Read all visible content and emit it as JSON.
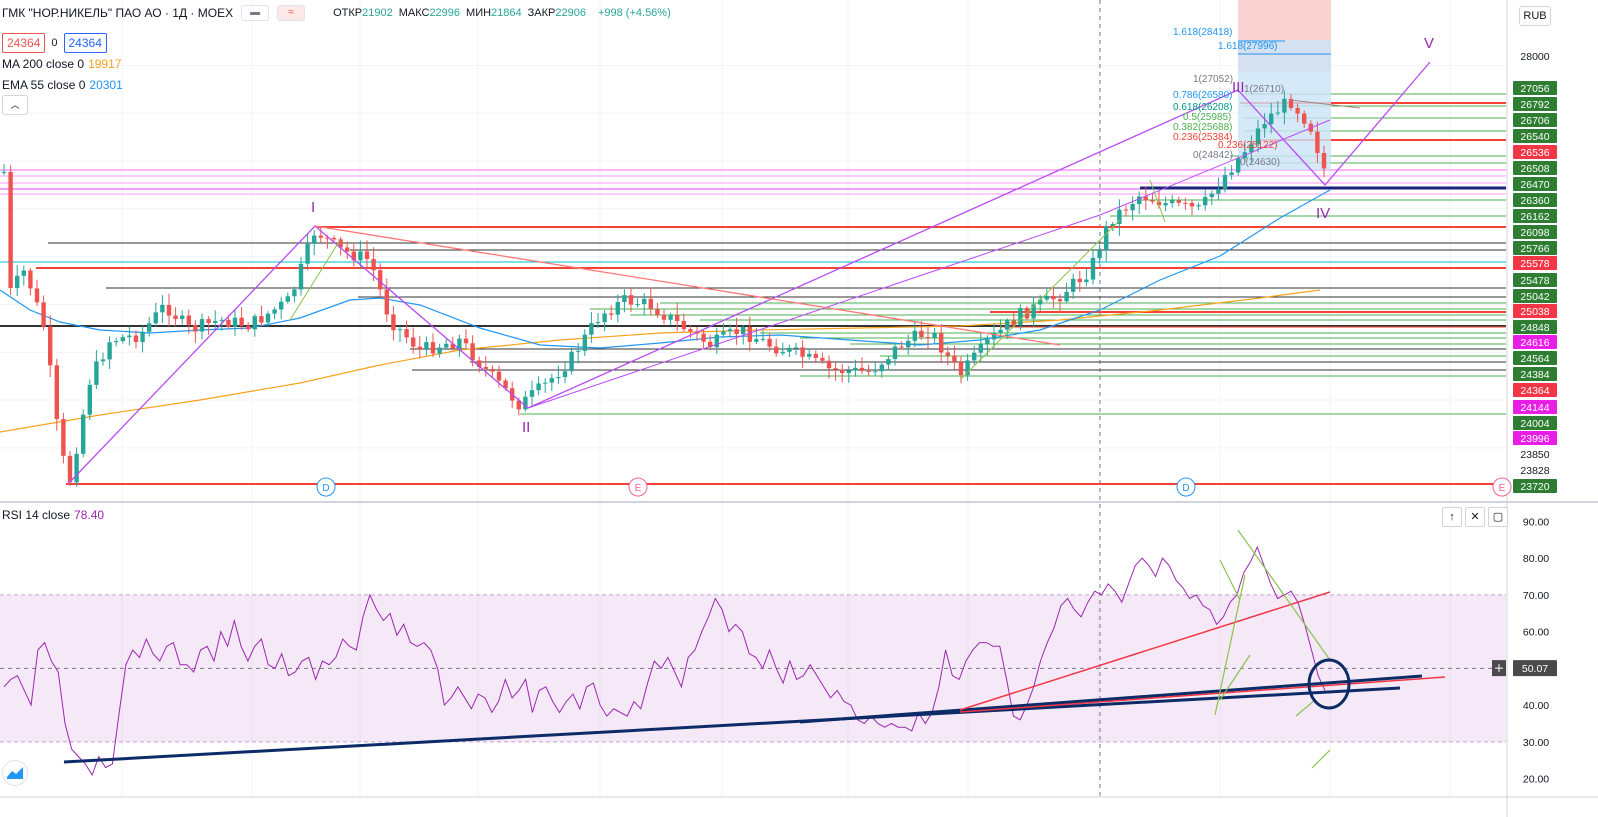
{
  "header": {
    "symbol": "ГМК \"НОР.НИКЕЛЬ\" ПАО АО · 1Д · MOEX",
    "toggle_labels": [
      "",
      "≈"
    ],
    "ohlc": [
      {
        "label": "ОТКР",
        "value": "21902"
      },
      {
        "label": "МАКС",
        "value": "22996"
      },
      {
        "label": "МИН",
        "value": "21864"
      },
      {
        "label": "ЗАКР",
        "value": "22906"
      }
    ],
    "change": "+998 (+4.56%)",
    "bid": "24364",
    "spread": "0",
    "ask": "24364"
  },
  "indicators": {
    "ma": {
      "name": "MA 200 close 0",
      "value": "19917",
      "color": "#f7a21b"
    },
    "ema": {
      "name": "EMA 55 close 0",
      "value": "20301",
      "color": "#2196f3"
    },
    "collapse_icon": "chevron-up-icon"
  },
  "currency": "RUB",
  "rsi_pane": {
    "name": "RSI 14 close",
    "value": "78.40",
    "buttons": [
      "↑",
      "✕",
      "▢"
    ],
    "cursor_value": "50.07"
  },
  "chart_data": [
    {
      "type": "candlestick",
      "title": "",
      "price_axis_labels": [
        {
          "value": "28000",
          "kind": "plain"
        },
        {
          "value": "27056",
          "kind": "green"
        },
        {
          "value": "26792",
          "kind": "green"
        },
        {
          "value": "26706",
          "kind": "green"
        },
        {
          "value": "26540",
          "kind": "green"
        },
        {
          "value": "26536",
          "kind": "red"
        },
        {
          "value": "26508",
          "kind": "green"
        },
        {
          "value": "26470",
          "kind": "green"
        },
        {
          "value": "26360",
          "kind": "green"
        },
        {
          "value": "26162",
          "kind": "green"
        },
        {
          "value": "26098",
          "kind": "green"
        },
        {
          "value": "25766",
          "kind": "green"
        },
        {
          "value": "25578",
          "kind": "red"
        },
        {
          "value": "25478",
          "kind": "green"
        },
        {
          "value": "25042",
          "kind": "green"
        },
        {
          "value": "25038",
          "kind": "red"
        },
        {
          "value": "24848",
          "kind": "green"
        },
        {
          "value": "24616",
          "kind": "magenta"
        },
        {
          "value": "24564",
          "kind": "green"
        },
        {
          "value": "24384",
          "kind": "green"
        },
        {
          "value": "24364",
          "kind": "red"
        },
        {
          "value": "24144",
          "kind": "magenta"
        },
        {
          "value": "24004",
          "kind": "green"
        },
        {
          "value": "23996",
          "kind": "magenta"
        },
        {
          "value": "23850",
          "kind": "plain"
        },
        {
          "value": "23828",
          "kind": "plain"
        },
        {
          "value": "23720",
          "kind": "green"
        }
      ],
      "wave_labels": [
        "I",
        "II",
        "III",
        "IV",
        "V"
      ],
      "fib_labels": [
        "1.618(28418)",
        "1.618(27996)",
        "1(27052)",
        "0.786(26580)",
        "0.618(26208)",
        "0.5(25985)",
        "0.382(25688)",
        "0.236(25384)",
        "0.236(25122)",
        "0(24842)",
        "0(24630)",
        "1(26710)"
      ],
      "event_markers": [
        "D",
        "E",
        "D",
        "E"
      ],
      "series": [
        {
          "name": "MA 200 close 0",
          "color": "#f7a21b"
        },
        {
          "name": "EMA 55 close 0",
          "color": "#2196f3"
        }
      ]
    },
    {
      "type": "line",
      "title": "",
      "name": "RSI 14 close",
      "ylim": [
        15,
        95
      ],
      "ticks": [
        90,
        80,
        70,
        60,
        50,
        40,
        30,
        20
      ],
      "tick_labels": [
        "90.00",
        "80.00",
        "70.00",
        "60.00",
        "50.00",
        "40.00",
        "30.00",
        "20.00"
      ],
      "band": [
        30,
        70
      ],
      "midline": 50,
      "values": [
        45,
        47,
        48,
        44,
        40,
        55,
        57,
        52,
        49,
        35,
        28,
        26,
        24,
        21,
        26,
        23,
        24,
        38,
        51,
        55,
        53,
        58,
        54,
        52,
        56,
        57,
        51,
        51,
        49,
        55,
        56,
        52,
        60,
        56,
        63,
        56,
        52,
        56,
        58,
        51,
        50,
        54,
        48,
        49,
        52,
        53,
        47,
        52,
        51,
        53,
        58,
        56,
        55,
        64,
        70,
        66,
        63,
        65,
        59,
        62,
        57,
        56,
        57,
        55,
        50,
        40,
        42,
        45,
        42,
        39,
        43,
        42,
        38,
        41,
        47,
        42,
        44,
        47,
        38,
        44,
        45,
        41,
        38,
        41,
        43,
        39,
        45,
        46,
        40,
        37,
        39,
        38,
        37,
        41,
        39,
        46,
        52,
        50,
        53,
        49,
        45,
        53,
        55,
        60,
        64,
        69,
        66,
        60,
        62,
        60,
        54,
        53,
        50,
        55,
        50,
        46,
        52,
        47,
        48,
        51,
        48,
        45,
        42,
        44,
        41,
        40,
        36,
        35,
        37,
        35,
        34,
        35,
        34,
        34,
        33,
        38,
        35,
        38,
        45,
        55,
        48,
        47,
        52,
        55,
        57,
        57,
        56,
        56,
        47,
        37,
        36,
        40,
        45,
        52,
        57,
        61,
        67,
        69,
        66,
        64,
        68,
        71,
        70,
        73,
        71,
        68,
        73,
        78,
        80,
        78,
        75,
        80,
        78,
        74,
        72,
        69,
        70,
        67,
        66,
        62,
        64,
        68,
        70,
        76,
        79,
        83,
        78,
        73,
        69,
        70,
        71,
        68,
        62,
        55,
        48,
        44
      ]
    }
  ]
}
